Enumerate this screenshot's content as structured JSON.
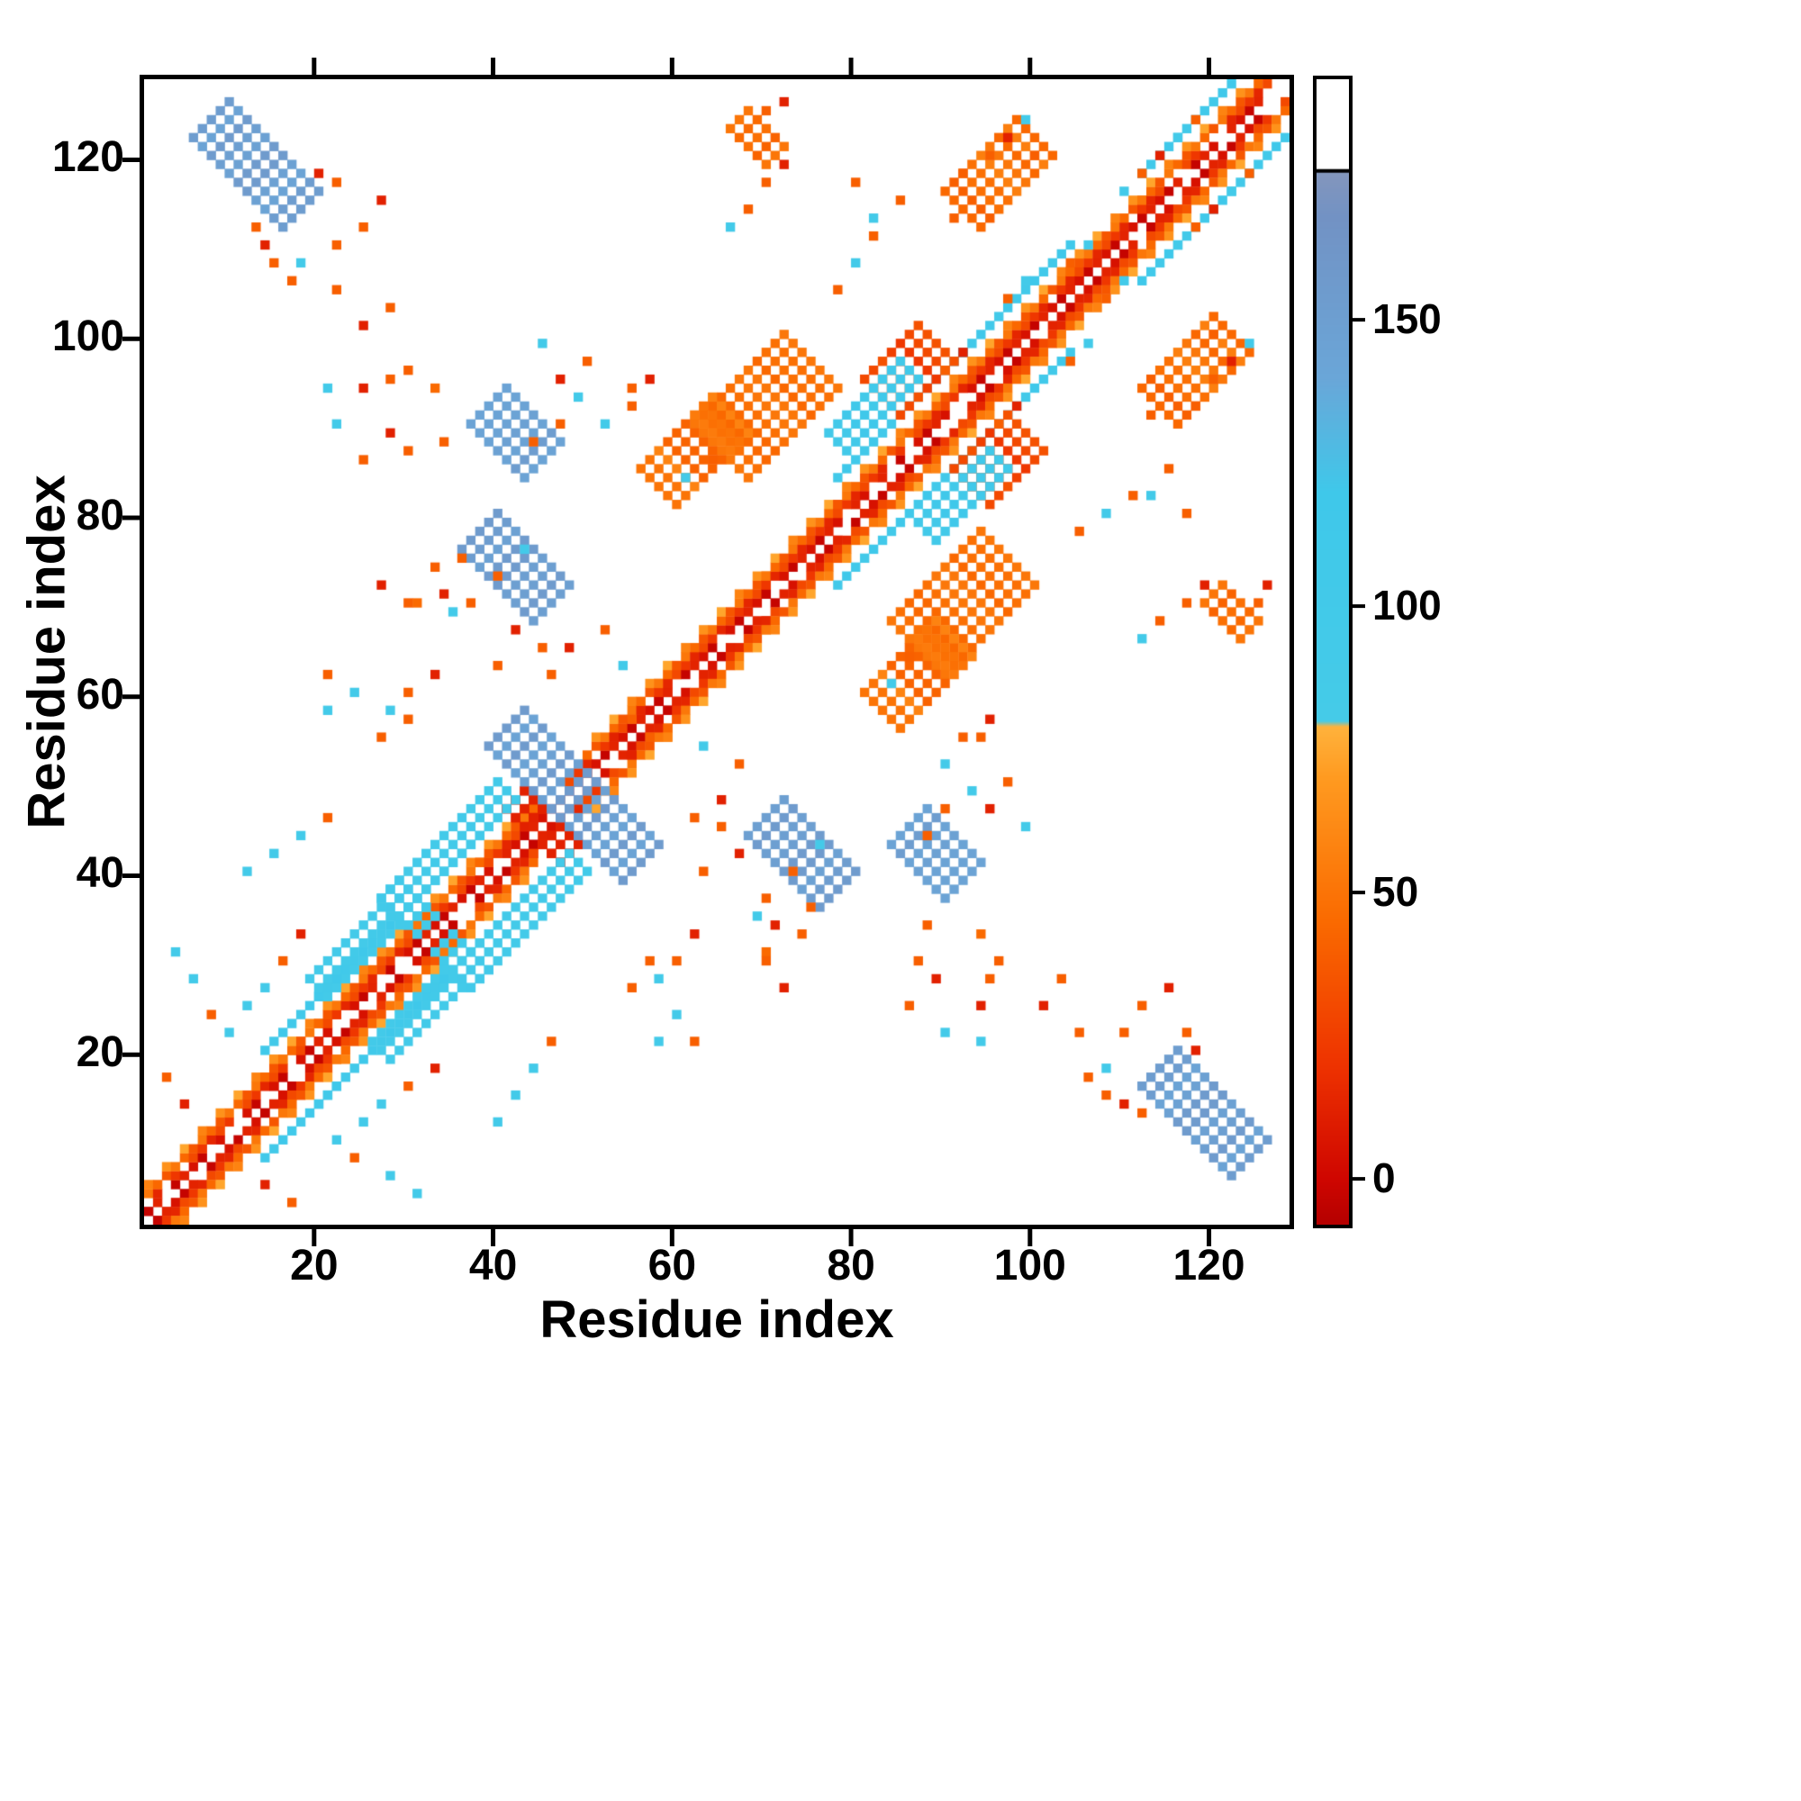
{
  "figure": {
    "background": "#ffffff"
  },
  "chart_data": {
    "type": "heatmap",
    "title": "",
    "xlabel": "Residue index",
    "ylabel": "Residue index",
    "n_residues": 128,
    "x_range": [
      1,
      129
    ],
    "y_range": [
      1,
      129
    ],
    "x_ticks": [
      20,
      40,
      60,
      80,
      100,
      120
    ],
    "y_ticks": [
      20,
      40,
      60,
      80,
      100,
      120
    ],
    "grid": false,
    "background": "#ffffff",
    "colorbar": {
      "ticks": [
        0,
        50,
        100,
        150
      ],
      "range": [
        -8,
        192
      ],
      "separator_value": 176,
      "separator_color": "#000000",
      "over_color": "#ffffff",
      "position": "right"
    },
    "colormap_stops": [
      [
        -8,
        "#b40000"
      ],
      [
        0,
        "#cf0600"
      ],
      [
        20,
        "#ee3300"
      ],
      [
        45,
        "#fa6a00"
      ],
      [
        70,
        "#ff9a20"
      ],
      [
        79,
        "#ffb23c"
      ],
      [
        80,
        "#45cbe8"
      ],
      [
        120,
        "#3fc8ea"
      ],
      [
        140,
        "#6aa6d8"
      ],
      [
        168,
        "#7292c4"
      ],
      [
        176,
        "#8496bc"
      ]
    ],
    "heatmap_features": {
      "symmetric": true,
      "diagonal_excluded": true,
      "diagonal_band": {
        "value_per_offset": 22,
        "segments": [
          [
            1,
            18,
            4
          ],
          [
            14,
            22,
            6
          ],
          [
            20,
            38,
            7
          ],
          [
            38,
            44,
            4
          ],
          [
            44,
            50,
            2
          ],
          [
            50,
            60,
            4
          ],
          [
            58,
            70,
            5
          ],
          [
            70,
            78,
            4
          ],
          [
            78,
            92,
            7
          ],
          [
            92,
            104,
            6
          ],
          [
            104,
            112,
            5
          ],
          [
            112,
            128,
            7
          ]
        ]
      },
      "anti_streaks": [
        [
          12.5,
          118.5,
          11,
          2,
          150
        ],
        [
          33,
          33,
          10,
          1,
          95
        ],
        [
          45,
          45,
          7,
          1,
          12
        ],
        [
          44.5,
          51.5,
          9,
          2,
          150
        ],
        [
          74,
          42,
          9,
          2,
          150
        ],
        [
          88.5,
          41.5,
          7,
          2,
          150
        ],
        [
          121.5,
          69,
          5,
          1,
          45
        ]
      ],
      "diag_streaks": [
        [
          96,
          117.5,
          9,
          2,
          48
        ],
        [
          92,
          70,
          10,
          3,
          48
        ],
        [
          86,
          96,
          7,
          2,
          30
        ],
        [
          62,
          87,
          8,
          2,
          50
        ],
        [
          36,
          44,
          10,
          1,
          95
        ],
        [
          24,
          31,
          8,
          1,
          95
        ],
        [
          82,
          92,
          8,
          1,
          110
        ]
      ],
      "dots": [
        [
          37,
          70,
          40
        ],
        [
          34,
          71,
          12
        ],
        [
          31,
          70,
          45
        ],
        [
          40,
          73,
          40
        ],
        [
          43,
          76,
          95
        ],
        [
          36,
          75,
          40
        ],
        [
          48,
          65,
          12
        ],
        [
          46,
          62,
          40
        ],
        [
          52,
          67,
          40
        ],
        [
          54,
          63,
          95
        ],
        [
          57,
          95,
          12
        ],
        [
          55,
          94,
          40
        ],
        [
          28,
          95,
          40
        ],
        [
          25,
          94,
          12
        ],
        [
          21,
          94,
          95
        ],
        [
          33,
          94,
          45
        ],
        [
          30,
          96,
          40
        ],
        [
          47,
          90,
          40
        ],
        [
          49,
          93,
          95
        ],
        [
          44,
          88,
          40
        ],
        [
          30,
          60,
          40
        ],
        [
          28,
          58,
          95
        ],
        [
          33,
          62,
          12
        ],
        [
          55,
          57,
          40
        ],
        [
          53,
          55,
          12
        ],
        [
          65,
          45,
          40
        ],
        [
          67,
          42,
          12
        ],
        [
          63,
          40,
          40
        ],
        [
          57,
          30,
          40
        ],
        [
          55,
          27,
          40
        ],
        [
          60,
          24,
          95
        ],
        [
          62,
          21,
          40
        ],
        [
          58,
          21,
          95
        ],
        [
          70,
          30,
          40
        ],
        [
          72,
          27,
          12
        ],
        [
          74,
          33,
          40
        ],
        [
          69,
          35,
          95
        ],
        [
          88,
          34,
          40
        ],
        [
          87,
          30,
          40
        ],
        [
          89,
          28,
          12
        ],
        [
          86,
          25,
          40
        ],
        [
          90,
          22,
          95
        ],
        [
          97,
          50,
          40
        ],
        [
          95,
          47,
          12
        ],
        [
          99,
          45,
          95
        ],
        [
          103,
          28,
          40
        ],
        [
          101,
          25,
          12
        ],
        [
          105,
          22,
          40
        ],
        [
          108,
          18,
          95
        ],
        [
          112,
          25,
          40
        ],
        [
          110,
          22,
          40
        ],
        [
          115,
          27,
          12
        ],
        [
          120,
          95,
          40
        ],
        [
          122,
          97,
          12
        ],
        [
          118,
          92,
          40
        ],
        [
          124,
          99,
          95
        ],
        [
          115,
          85,
          40
        ],
        [
          113,
          82,
          95
        ],
        [
          117,
          80,
          40
        ],
        [
          125,
          70,
          40
        ],
        [
          126,
          72,
          12
        ],
        [
          70,
          117,
          40
        ],
        [
          68,
          114,
          40
        ],
        [
          72,
          119,
          12
        ],
        [
          66,
          112,
          95
        ],
        [
          80,
          108,
          95
        ],
        [
          82,
          111,
          40
        ],
        [
          78,
          105,
          40
        ],
        [
          92,
          55,
          40
        ],
        [
          90,
          52,
          95
        ],
        [
          14,
          27,
          95
        ],
        [
          12,
          25,
          95
        ],
        [
          10,
          22,
          95
        ],
        [
          4,
          31,
          95
        ],
        [
          6,
          28,
          95
        ],
        [
          8,
          24,
          40
        ],
        [
          16,
          30,
          40
        ],
        [
          18,
          33,
          12
        ],
        [
          3,
          17,
          40
        ],
        [
          5,
          14,
          12
        ],
        [
          44,
          18,
          95
        ],
        [
          42,
          15,
          95
        ],
        [
          46,
          21,
          40
        ],
        [
          40,
          12,
          95
        ],
        [
          15,
          108,
          40
        ],
        [
          14,
          110,
          12
        ],
        [
          17,
          106,
          40
        ],
        [
          13,
          112,
          40
        ],
        [
          20,
          118,
          12
        ],
        [
          22,
          117,
          40
        ],
        [
          100,
          120,
          40
        ],
        [
          91,
          113,
          40
        ],
        [
          106,
          99,
          95
        ],
        [
          104,
          97,
          40
        ],
        [
          86,
          64,
          40
        ],
        [
          84,
          61,
          95
        ],
        [
          98,
          92,
          12
        ],
        [
          96,
          90,
          40
        ],
        [
          108,
          104,
          40
        ],
        [
          110,
          106,
          95
        ],
        [
          118,
          112,
          40
        ],
        [
          116,
          110,
          95
        ],
        [
          120,
          114,
          12
        ],
        [
          124,
          118,
          40
        ],
        [
          122,
          116,
          95
        ]
      ]
    }
  }
}
